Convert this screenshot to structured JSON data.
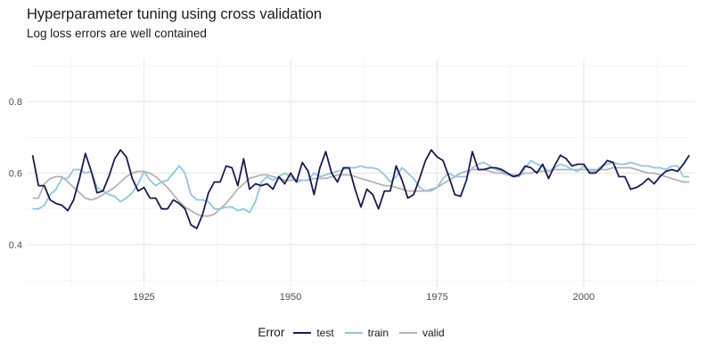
{
  "chart_data": {
    "type": "line",
    "title": "Hyperparameter tuning using cross validation",
    "subtitle": "Log loss errors are well contained",
    "xlabel": "",
    "ylabel": "",
    "xlim": [
      1905,
      2019
    ],
    "ylim": [
      0.28,
      0.92
    ],
    "x_ticks": [
      1925,
      1950,
      1975,
      2000
    ],
    "y_ticks": [
      0.4,
      0.6,
      0.8
    ],
    "x_minor_ticks": [
      1912.5,
      1937.5,
      1962.5,
      1987.5,
      2012.5
    ],
    "y_minor_ticks": [
      0.3,
      0.5,
      0.7,
      0.9
    ],
    "grid": true,
    "legend_position": "bottom",
    "legend_title": "Error",
    "series": [
      {
        "name": "test",
        "color": "#1b1b4d",
        "x": [
          1906,
          1907,
          1908,
          1909,
          1910,
          1911,
          1912,
          1913,
          1914,
          1915,
          1916,
          1917,
          1918,
          1919,
          1920,
          1921,
          1922,
          1923,
          1924,
          1925,
          1926,
          1927,
          1928,
          1929,
          1930,
          1931,
          1932,
          1933,
          1934,
          1935,
          1936,
          1937,
          1938,
          1939,
          1940,
          1941,
          1942,
          1943,
          1944,
          1945,
          1946,
          1947,
          1948,
          1949,
          1950,
          1951,
          1952,
          1953,
          1954,
          1955,
          1956,
          1957,
          1958,
          1959,
          1960,
          1961,
          1962,
          1963,
          1964,
          1965,
          1966,
          1967,
          1968,
          1969,
          1970,
          1971,
          1972,
          1973,
          1974,
          1975,
          1976,
          1977,
          1978,
          1979,
          1980,
          1981,
          1982,
          1983,
          1984,
          1985,
          1986,
          1987,
          1988,
          1989,
          1990,
          1991,
          1992,
          1993,
          1994,
          1995,
          1996,
          1997,
          1998,
          1999,
          2000,
          2001,
          2002,
          2003,
          2004,
          2005,
          2006,
          2007,
          2008,
          2009,
          2010,
          2011,
          2012,
          2013,
          2014,
          2015,
          2016,
          2017,
          2018
        ],
        "y": [
          0.65,
          0.565,
          0.565,
          0.525,
          0.515,
          0.51,
          0.495,
          0.525,
          0.585,
          0.655,
          0.605,
          0.545,
          0.55,
          0.59,
          0.64,
          0.665,
          0.645,
          0.585,
          0.55,
          0.56,
          0.53,
          0.53,
          0.5,
          0.5,
          0.525,
          0.515,
          0.5,
          0.455,
          0.445,
          0.485,
          0.545,
          0.575,
          0.575,
          0.62,
          0.615,
          0.565,
          0.64,
          0.555,
          0.57,
          0.565,
          0.57,
          0.555,
          0.59,
          0.57,
          0.6,
          0.575,
          0.63,
          0.605,
          0.54,
          0.615,
          0.66,
          0.6,
          0.575,
          0.615,
          0.615,
          0.555,
          0.505,
          0.555,
          0.54,
          0.5,
          0.55,
          0.55,
          0.62,
          0.58,
          0.53,
          0.54,
          0.585,
          0.635,
          0.665,
          0.645,
          0.635,
          0.59,
          0.54,
          0.535,
          0.58,
          0.66,
          0.61,
          0.61,
          0.615,
          0.615,
          0.61,
          0.6,
          0.59,
          0.595,
          0.62,
          0.615,
          0.6,
          0.625,
          0.585,
          0.62,
          0.65,
          0.64,
          0.62,
          0.625,
          0.625,
          0.6,
          0.6,
          0.615,
          0.635,
          0.63,
          0.59,
          0.59,
          0.555,
          0.56,
          0.57,
          0.585,
          0.57,
          0.59,
          0.605,
          0.61,
          0.605,
          0.625,
          0.65
        ]
      },
      {
        "name": "train",
        "color": "#92c5de",
        "x": [
          1906,
          1907,
          1908,
          1909,
          1910,
          1911,
          1912,
          1913,
          1914,
          1915,
          1916,
          1917,
          1918,
          1919,
          1920,
          1921,
          1922,
          1923,
          1924,
          1925,
          1926,
          1927,
          1928,
          1929,
          1930,
          1931,
          1932,
          1933,
          1934,
          1935,
          1936,
          1937,
          1938,
          1939,
          1940,
          1941,
          1942,
          1943,
          1944,
          1945,
          1946,
          1947,
          1948,
          1949,
          1950,
          1951,
          1952,
          1953,
          1954,
          1955,
          1956,
          1957,
          1958,
          1959,
          1960,
          1961,
          1962,
          1963,
          1964,
          1965,
          1966,
          1967,
          1968,
          1969,
          1970,
          1971,
          1972,
          1973,
          1974,
          1975,
          1976,
          1977,
          1978,
          1979,
          1980,
          1981,
          1982,
          1983,
          1984,
          1985,
          1986,
          1987,
          1988,
          1989,
          1990,
          1991,
          1992,
          1993,
          1994,
          1995,
          1996,
          1997,
          1998,
          1999,
          2000,
          2001,
          2002,
          2003,
          2004,
          2005,
          2006,
          2007,
          2008,
          2009,
          2010,
          2011,
          2012,
          2013,
          2014,
          2015,
          2016,
          2017,
          2018
        ],
        "y": [
          0.5,
          0.5,
          0.51,
          0.54,
          0.555,
          0.585,
          0.585,
          0.61,
          0.61,
          0.6,
          0.605,
          0.56,
          0.55,
          0.54,
          0.535,
          0.52,
          0.53,
          0.545,
          0.57,
          0.605,
          0.58,
          0.565,
          0.575,
          0.58,
          0.6,
          0.62,
          0.6,
          0.54,
          0.525,
          0.525,
          0.52,
          0.5,
          0.5,
          0.505,
          0.505,
          0.495,
          0.5,
          0.49,
          0.52,
          0.575,
          0.59,
          0.58,
          0.59,
          0.6,
          0.59,
          0.575,
          0.58,
          0.58,
          0.6,
          0.59,
          0.595,
          0.6,
          0.605,
          0.61,
          0.615,
          0.615,
          0.62,
          0.615,
          0.615,
          0.61,
          0.595,
          0.575,
          0.59,
          0.615,
          0.6,
          0.585,
          0.56,
          0.55,
          0.55,
          0.56,
          0.585,
          0.6,
          0.59,
          0.59,
          0.59,
          0.615,
          0.625,
          0.63,
          0.62,
          0.61,
          0.605,
          0.595,
          0.59,
          0.59,
          0.615,
          0.635,
          0.625,
          0.62,
          0.605,
          0.615,
          0.625,
          0.62,
          0.61,
          0.605,
          0.62,
          0.605,
          0.605,
          0.62,
          0.625,
          0.63,
          0.625,
          0.625,
          0.63,
          0.625,
          0.62,
          0.62,
          0.615,
          0.615,
          0.61,
          0.62,
          0.62,
          0.59,
          0.59
        ]
      },
      {
        "name": "valid",
        "color": "#b3b3b3",
        "x": [
          1906,
          1907,
          1908,
          1909,
          1910,
          1911,
          1912,
          1913,
          1914,
          1915,
          1916,
          1917,
          1918,
          1919,
          1920,
          1921,
          1922,
          1923,
          1924,
          1925,
          1926,
          1927,
          1928,
          1929,
          1930,
          1931,
          1932,
          1933,
          1934,
          1935,
          1936,
          1937,
          1938,
          1939,
          1940,
          1941,
          1942,
          1943,
          1944,
          1945,
          1946,
          1947,
          1948,
          1949,
          1950,
          1951,
          1952,
          1953,
          1954,
          1955,
          1956,
          1957,
          1958,
          1959,
          1960,
          1961,
          1962,
          1963,
          1964,
          1965,
          1966,
          1967,
          1968,
          1969,
          1970,
          1971,
          1972,
          1973,
          1974,
          1975,
          1976,
          1977,
          1978,
          1979,
          1980,
          1981,
          1982,
          1983,
          1984,
          1985,
          1986,
          1987,
          1988,
          1989,
          1990,
          1991,
          1992,
          1993,
          1994,
          1995,
          1996,
          1997,
          1998,
          1999,
          2000,
          2001,
          2002,
          2003,
          2004,
          2005,
          2006,
          2007,
          2008,
          2009,
          2010,
          2011,
          2012,
          2013,
          2014,
          2015,
          2016,
          2017,
          2018
        ],
        "y": [
          0.53,
          0.53,
          0.57,
          0.585,
          0.59,
          0.59,
          0.575,
          0.56,
          0.545,
          0.53,
          0.525,
          0.53,
          0.54,
          0.55,
          0.56,
          0.575,
          0.59,
          0.6,
          0.605,
          0.605,
          0.6,
          0.59,
          0.575,
          0.56,
          0.54,
          0.52,
          0.505,
          0.495,
          0.485,
          0.48,
          0.48,
          0.485,
          0.5,
          0.515,
          0.535,
          0.555,
          0.57,
          0.585,
          0.59,
          0.595,
          0.595,
          0.59,
          0.585,
          0.58,
          0.58,
          0.58,
          0.58,
          0.58,
          0.585,
          0.585,
          0.585,
          0.59,
          0.595,
          0.595,
          0.595,
          0.59,
          0.585,
          0.58,
          0.575,
          0.57,
          0.565,
          0.565,
          0.56,
          0.555,
          0.55,
          0.55,
          0.55,
          0.55,
          0.555,
          0.56,
          0.57,
          0.58,
          0.59,
          0.6,
          0.605,
          0.61,
          0.61,
          0.61,
          0.605,
          0.6,
          0.6,
          0.595,
          0.595,
          0.595,
          0.6,
          0.6,
          0.605,
          0.605,
          0.605,
          0.61,
          0.61,
          0.61,
          0.61,
          0.61,
          0.61,
          0.61,
          0.61,
          0.61,
          0.61,
          0.615,
          0.615,
          0.615,
          0.615,
          0.61,
          0.605,
          0.6,
          0.6,
          0.595,
          0.59,
          0.585,
          0.58,
          0.575,
          0.575
        ]
      }
    ]
  }
}
